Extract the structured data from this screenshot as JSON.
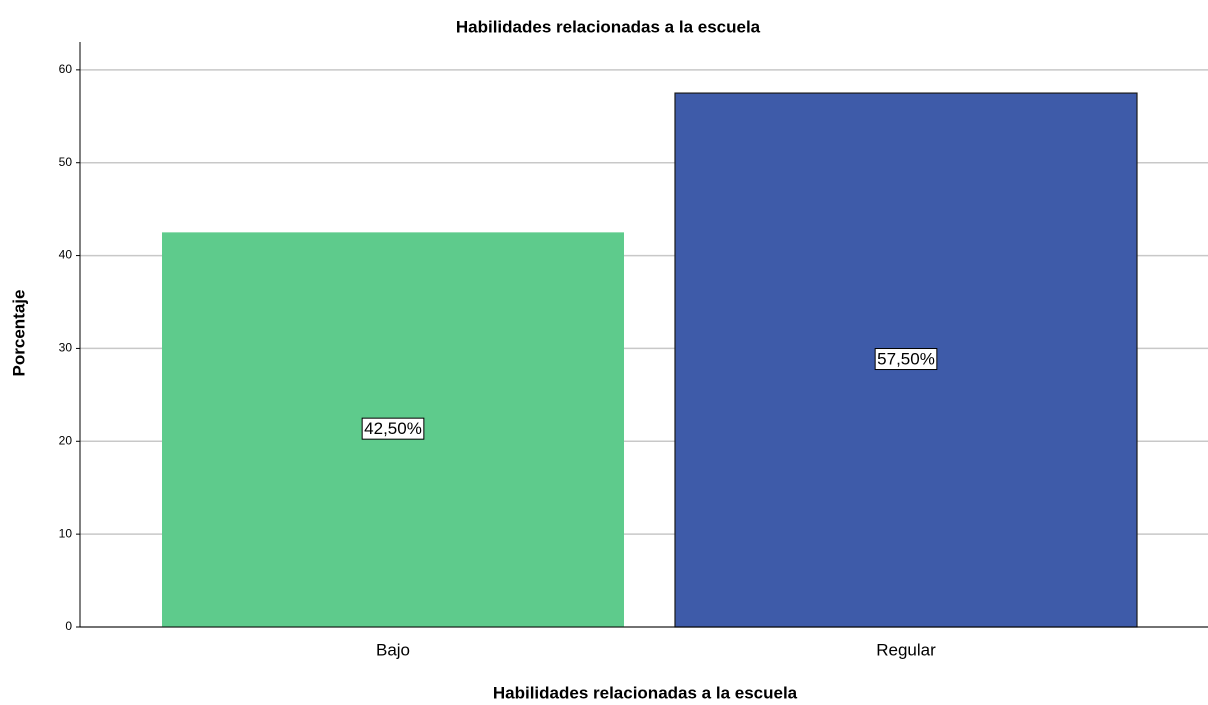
{
  "chart_data": {
    "type": "bar",
    "title": "Habilidades relacionadas a la escuela",
    "x_label": "Habilidades relacionadas a la escuela",
    "y_label": "Porcentaje",
    "categories": [
      "Bajo",
      "Regular"
    ],
    "values": [
      42.5,
      57.5
    ],
    "value_labels": [
      "42,50%",
      "57,50%"
    ],
    "colors": [
      "#5ecb8c",
      "#3e5ba9"
    ],
    "ylim": [
      0,
      63
    ],
    "yticks": [
      0,
      10,
      20,
      30,
      40,
      50,
      60
    ],
    "grid": true
  }
}
